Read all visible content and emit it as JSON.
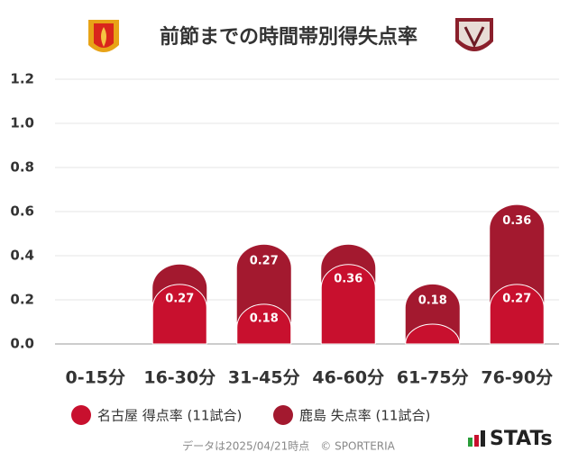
{
  "chart_data": {
    "type": "stacked-bar",
    "title": "前節までの時間帯別得失点率",
    "categories": [
      "0-15分",
      "16-30分",
      "31-45分",
      "46-60分",
      "61-75分",
      "76-90分"
    ],
    "series": [
      {
        "name": "名古屋 得点率 (11試合)",
        "color": "#c8102e",
        "values": [
          0,
          0.27,
          0.18,
          0.36,
          0.09,
          0.27
        ],
        "value_labels": [
          null,
          "0.27",
          "0.18",
          "0.36",
          null,
          "0.27"
        ]
      },
      {
        "name": "鹿島 失点率 (11試合)",
        "color": "#a3192f",
        "values": [
          0,
          0.09,
          0.27,
          0.09,
          0.18,
          0.36
        ],
        "value_labels": [
          null,
          null,
          "0.27",
          null,
          "0.18",
          "0.36"
        ]
      }
    ],
    "ylim": [
      0,
      1.2
    ],
    "yticks": [
      {
        "value": 0,
        "label": "0.0"
      },
      0.2,
      0.4,
      0.6,
      0.8,
      {
        "value": 1,
        "label": "1.0"
      },
      1.2
    ],
    "grid": true,
    "footnote": "データは2025/04/21時点　© SPORTERIA",
    "brand": "STATs"
  }
}
